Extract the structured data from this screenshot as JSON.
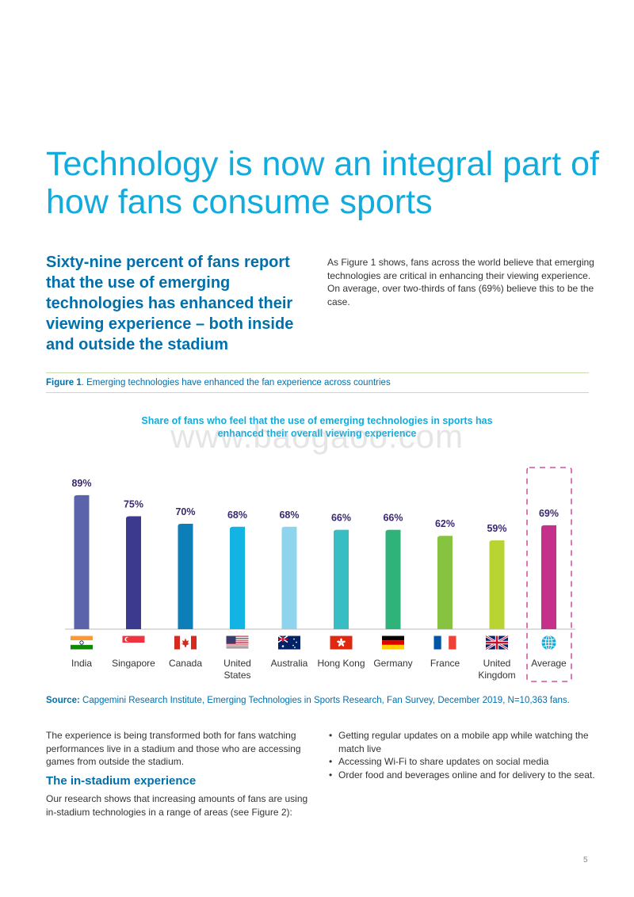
{
  "page": {
    "title": "Technology is now an integral part of how fans consume sports",
    "lede": "Sixty-nine percent of fans report that the use of emerging technologies has enhanced their viewing experience – both inside and outside the stadium",
    "intro": "As Figure 1 shows, fans across the world believe that emerging technologies are critical in enhancing their viewing experience. On average, over two-thirds of fans (69%) believe this to be the case.",
    "figure_label": "Figure 1",
    "figure_caption": ". Emerging technologies have enhanced the fan experience across countries",
    "watermark": "www.baogaoo.com",
    "source_label": "Source:",
    "source_text": " Capgemini Research Institute, Emerging Technologies in Sports Research, Fan Survey, December 2019, N=10,363 fans.",
    "body_para": "The experience is being transformed both for fans watching performances live in a stadium and those who are accessing games from outside the stadium.",
    "subheading": "The in-stadium experience",
    "body_para2": "Our research shows that increasing amounts of fans are using in-stadium technologies in a range of areas (see Figure 2):",
    "bullets": [
      "Getting regular updates on a mobile app while watching the match live",
      "Accessing Wi-Fi to share updates on social media",
      "Order food and beverages online and for delivery to the seat."
    ],
    "page_number": "5"
  },
  "chart_data": {
    "type": "bar",
    "title": "Share of fans who feel that the use of emerging technologies in sports has enhanced their overall viewing experience",
    "categories": [
      "India",
      "Singapore",
      "Canada",
      "United States",
      "Australia",
      "Hong Kong",
      "Germany",
      "France",
      "United Kingdom",
      "Average"
    ],
    "category_lines": [
      [
        "India"
      ],
      [
        "Singapore"
      ],
      [
        "Canada"
      ],
      [
        "United",
        "States"
      ],
      [
        "Australia"
      ],
      [
        "Hong Kong"
      ],
      [
        "Germany"
      ],
      [
        "France"
      ],
      [
        "United",
        "Kingdom"
      ],
      [
        "Average"
      ]
    ],
    "values": [
      89,
      75,
      70,
      68,
      68,
      66,
      66,
      62,
      59,
      69
    ],
    "value_labels": [
      "89%",
      "75%",
      "70%",
      "68%",
      "68%",
      "66%",
      "66%",
      "62%",
      "59%",
      "69%"
    ],
    "colors": [
      "#5b63ab",
      "#3c3a8f",
      "#0c7fb8",
      "#12b4e3",
      "#8dd4ec",
      "#38bec2",
      "#2fb37a",
      "#86c340",
      "#b8d432",
      "#c5308a"
    ],
    "icons": [
      "india-flag-icon",
      "singapore-flag-icon",
      "canada-flag-icon",
      "usa-flag-icon",
      "australia-flag-icon",
      "hong-kong-flag-icon",
      "germany-flag-icon",
      "france-flag-icon",
      "uk-flag-icon",
      "globe-icon"
    ],
    "highlight": "Average",
    "ylim": [
      0,
      100
    ],
    "xlabel": "",
    "ylabel": "",
    "grid": false
  }
}
